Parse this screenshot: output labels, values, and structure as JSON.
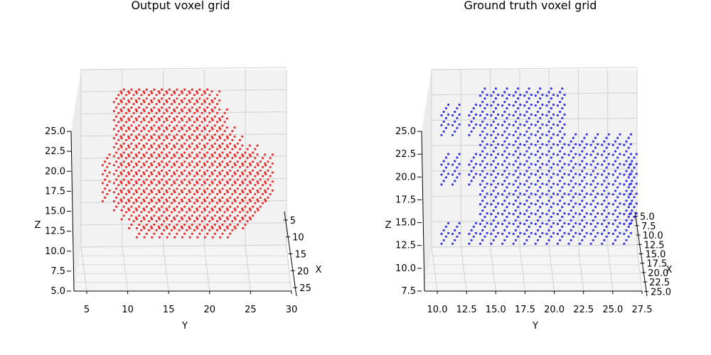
{
  "chart_data": [
    {
      "type": "scatter",
      "title": "Output voxel grid",
      "xlabel": "X",
      "ylabel": "Y",
      "zlabel": "Z",
      "point_color": "#e8120f",
      "grid": true,
      "view": "3d",
      "ylim": [
        3,
        30
      ],
      "zlim": [
        5,
        28
      ],
      "xlim": [
        2,
        26
      ],
      "y_ticks": [
        "5",
        "10",
        "15",
        "20",
        "25",
        "30"
      ],
      "z_ticks": [
        "5.0",
        "7.5",
        "10.0",
        "12.5",
        "15.0",
        "17.5",
        "20.0",
        "22.5",
        "25.0"
      ],
      "x_ticks": [
        "5",
        "10",
        "15",
        "20",
        "25"
      ],
      "columns": [
        {
          "y": 6.0,
          "zmin": 13,
          "zmax": 17
        },
        {
          "y": 7.5,
          "zmin": 12,
          "zmax": 24
        },
        {
          "y": 8.5,
          "zmin": 11,
          "zmax": 25
        },
        {
          "y": 9.5,
          "zmin": 10,
          "zmax": 26
        },
        {
          "y": 10.5,
          "zmin": 9,
          "zmax": 27
        },
        {
          "y": 11.5,
          "zmin": 9,
          "zmax": 28
        },
        {
          "y": 12.5,
          "zmin": 9,
          "zmax": 28
        },
        {
          "y": 13.5,
          "zmin": 9,
          "zmax": 28
        },
        {
          "y": 14.5,
          "zmin": 9,
          "zmax": 28
        },
        {
          "y": 15.5,
          "zmin": 9,
          "zmax": 28
        },
        {
          "y": 16.5,
          "zmin": 9,
          "zmax": 28
        },
        {
          "y": 17.5,
          "zmin": 9,
          "zmax": 28
        },
        {
          "y": 18.5,
          "zmin": 9,
          "zmax": 28
        },
        {
          "y": 19.5,
          "zmin": 9,
          "zmax": 26
        },
        {
          "y": 20.5,
          "zmin": 9,
          "zmax": 24
        },
        {
          "y": 21.5,
          "zmin": 9,
          "zmax": 22
        },
        {
          "y": 22.5,
          "zmin": 9,
          "zmax": 20
        },
        {
          "y": 23.5,
          "zmin": 10,
          "zmax": 19
        },
        {
          "y": 24.5,
          "zmin": 10,
          "zmax": 18
        },
        {
          "y": 25.5,
          "zmin": 11,
          "zmax": 18
        },
        {
          "y": 26.5,
          "zmin": 12,
          "zmax": 17
        },
        {
          "y": 27.5,
          "zmin": 13,
          "zmax": 17
        }
      ]
    },
    {
      "type": "scatter",
      "title": "Ground truth voxel grid",
      "xlabel": "X",
      "ylabel": "Y",
      "zlabel": "Z",
      "point_color": "#1414e0",
      "grid": true,
      "view": "3d",
      "ylim": [
        9,
        27.5
      ],
      "zlim": [
        7,
        28
      ],
      "xlim": [
        3,
        26
      ],
      "y_ticks": [
        "10.0",
        "12.5",
        "15.0",
        "17.5",
        "20.0",
        "22.5",
        "25.0",
        "27.5"
      ],
      "z_ticks": [
        "7.5",
        "10.0",
        "12.5",
        "15.0",
        "17.5",
        "20.0",
        "22.5",
        "25.0"
      ],
      "x_ticks": [
        "5.0",
        "7.5",
        "10.0",
        "12.5",
        "15.0",
        "17.5",
        "20.0",
        "22.5",
        "25.0"
      ],
      "columns": [
        {
          "y": 10.0,
          "zmin": 10,
          "zmax": 11
        },
        {
          "y": 10.0,
          "zmin": 16,
          "zmax": 18
        },
        {
          "y": 10.0,
          "zmin": 21,
          "zmax": 23
        },
        {
          "y": 10.0,
          "zmin": 26,
          "zmax": 28
        },
        {
          "y": 11.0,
          "zmin": 10,
          "zmax": 11
        },
        {
          "y": 11.0,
          "zmin": 16,
          "zmax": 18
        },
        {
          "y": 11.0,
          "zmin": 21,
          "zmax": 23
        },
        {
          "y": 11.0,
          "zmin": 26,
          "zmax": 28
        },
        {
          "y": 12.5,
          "zmin": 10,
          "zmax": 11
        },
        {
          "y": 12.5,
          "zmin": 16,
          "zmax": 18
        },
        {
          "y": 12.5,
          "zmin": 21,
          "zmax": 23
        },
        {
          "y": 12.5,
          "zmin": 26,
          "zmax": 28
        },
        {
          "y": 13.5,
          "zmin": 10,
          "zmax": 28
        },
        {
          "y": 14.5,
          "zmin": 10,
          "zmax": 28
        },
        {
          "y": 15.5,
          "zmin": 10,
          "zmax": 28
        },
        {
          "y": 16.5,
          "zmin": 10,
          "zmax": 28
        },
        {
          "y": 17.5,
          "zmin": 10,
          "zmax": 28
        },
        {
          "y": 18.5,
          "zmin": 10,
          "zmax": 28
        },
        {
          "y": 19.5,
          "zmin": 10,
          "zmax": 28
        },
        {
          "y": 20.5,
          "zmin": 10,
          "zmax": 28
        },
        {
          "y": 21.5,
          "zmin": 10,
          "zmax": 20
        },
        {
          "y": 22.5,
          "zmin": 10,
          "zmax": 20
        },
        {
          "y": 23.5,
          "zmin": 10,
          "zmax": 20
        },
        {
          "y": 24.5,
          "zmin": 10,
          "zmax": 20
        },
        {
          "y": 25.5,
          "zmin": 10,
          "zmax": 20
        },
        {
          "y": 26.5,
          "zmin": 10,
          "zmax": 20
        },
        {
          "y": 27.0,
          "zmin": 12,
          "zmax": 18
        }
      ]
    }
  ]
}
